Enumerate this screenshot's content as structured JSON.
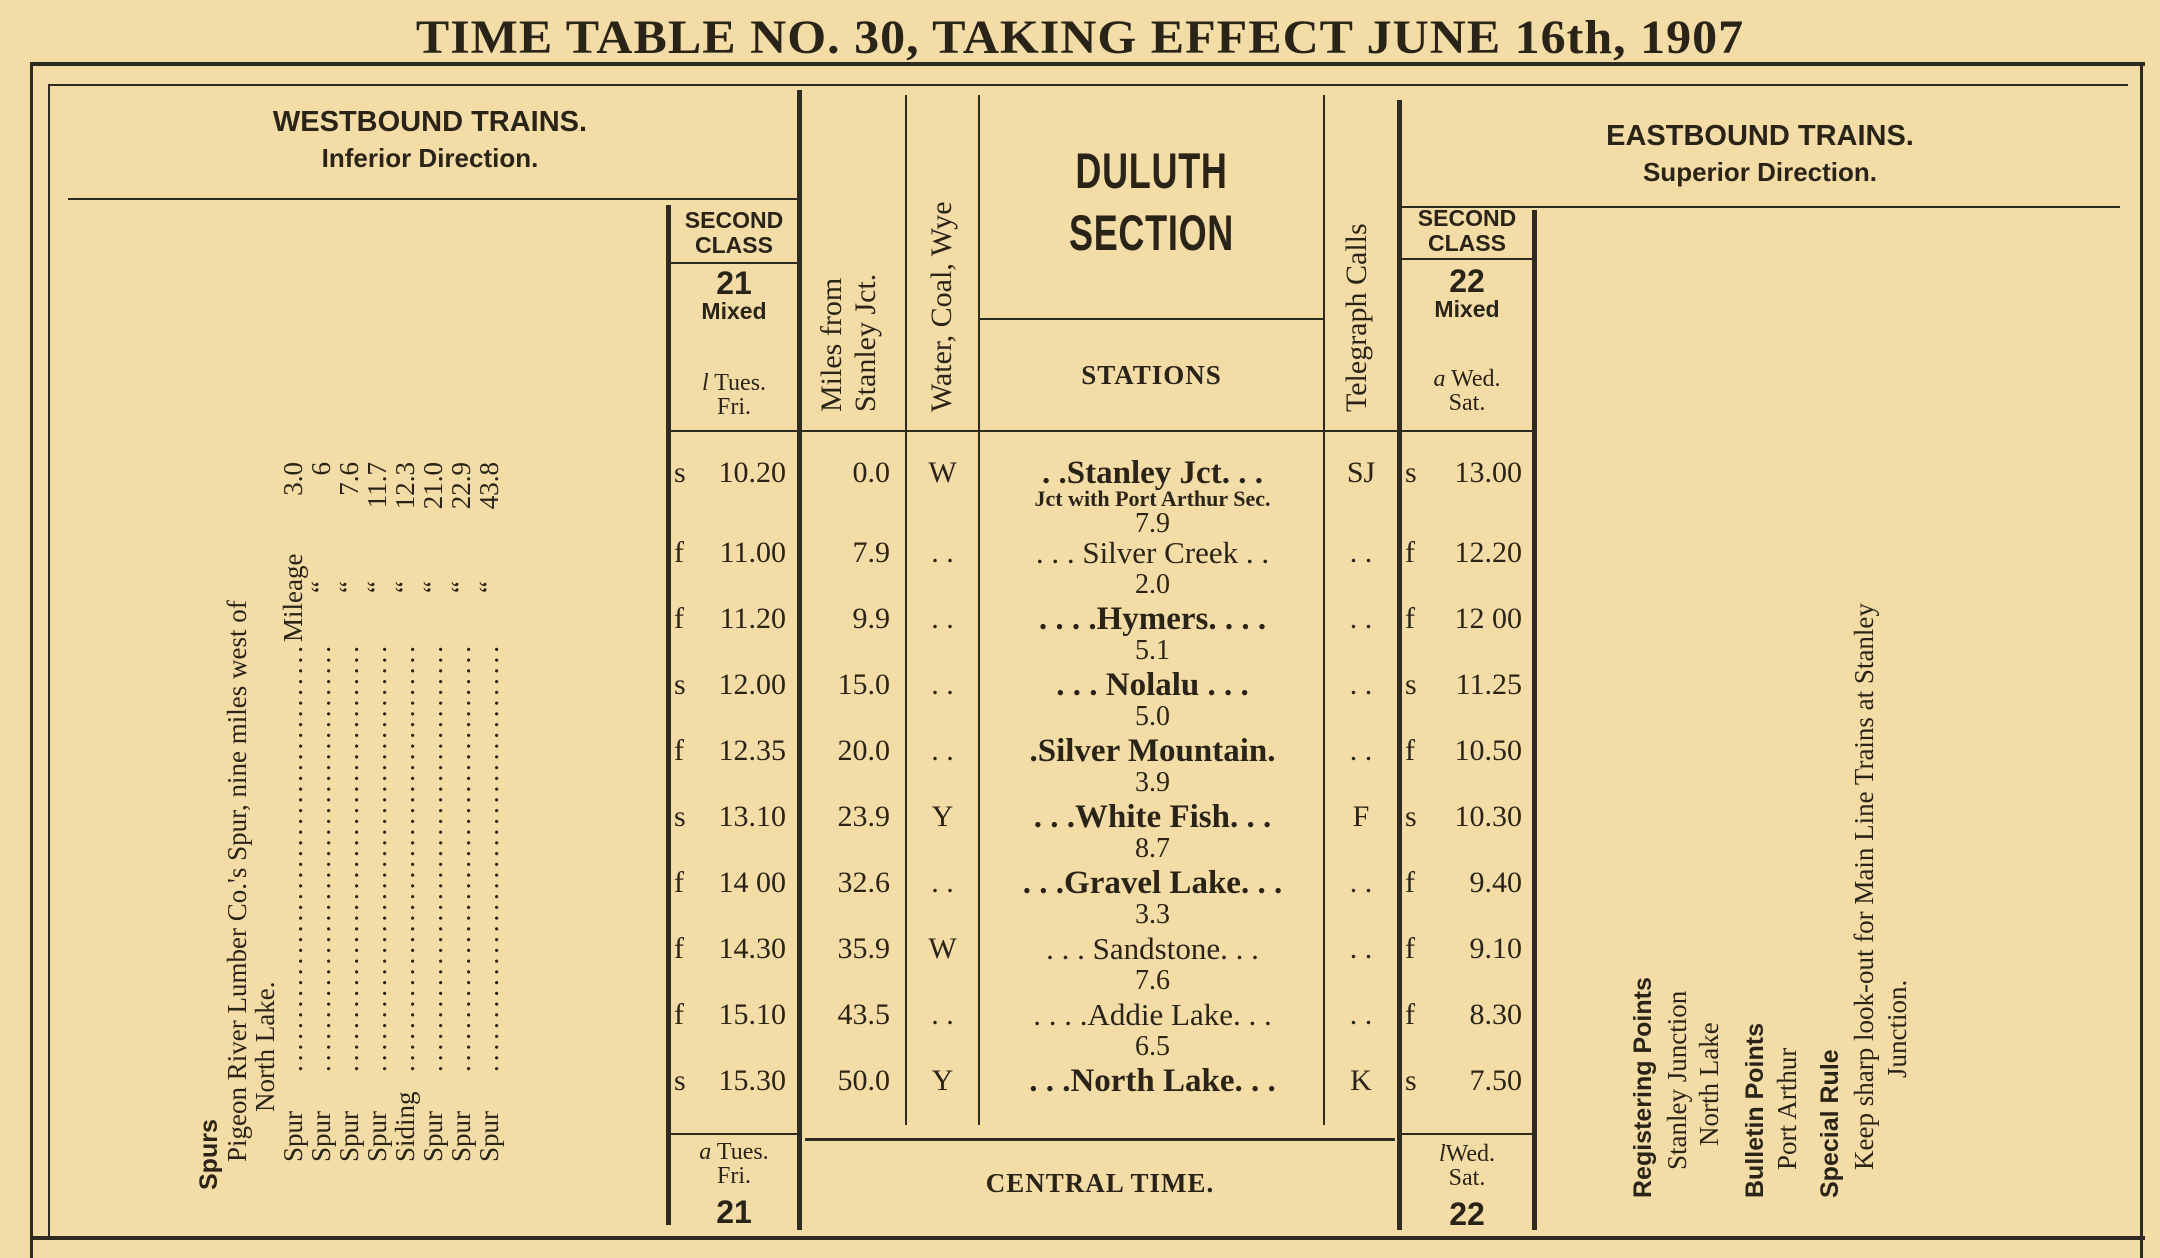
{
  "title": "TIME TABLE NO. 30, TAKING EFFECT JUNE 16th, 1907",
  "westbound": {
    "heading": "WESTBOUND TRAINS.",
    "direction": "Inferior Direction."
  },
  "eastbound": {
    "heading": "EASTBOUND TRAINS.",
    "direction": "Superior Direction."
  },
  "train21": {
    "class": [
      "SECOND",
      "CLASS"
    ],
    "number": "21",
    "type": "Mixed",
    "top_days_mark": "l",
    "top_days": [
      "Tues.",
      "Fri."
    ],
    "bottom_days_mark": "a",
    "bottom_days": [
      "Tues.",
      "Fri."
    ]
  },
  "train22": {
    "class": [
      "SECOND",
      "CLASS"
    ],
    "number": "22",
    "type": "Mixed",
    "top_days_mark": "a",
    "top_days": [
      "Wed.",
      "Sat."
    ],
    "bottom_days_mark": "l",
    "bottom_days": [
      "Wed.",
      "Sat."
    ]
  },
  "columns": {
    "miles": [
      "Miles from",
      "Stanley Jct."
    ],
    "water": "Water, Coal, Wye",
    "section": [
      "DULUTH",
      "SECTION"
    ],
    "stations": "STATIONS",
    "telegraph": "Telegraph Calls"
  },
  "rows": [
    {
      "w_flag": "s",
      "w_time": "10.20",
      "miles": "0.0",
      "wcw": "W",
      "station": ". .Stanley Jct. . .",
      "bold": true,
      "note": "Jct with Port Arthur Sec.",
      "call": "SJ",
      "e_flag": "s",
      "e_time": "13.00",
      "dist_next": "7.9"
    },
    {
      "w_flag": "f",
      "w_time": "11.00",
      "miles": "7.9",
      "wcw": ". .",
      "station": ". . . Silver Creek . .",
      "bold": false,
      "call": ". .",
      "e_flag": "f",
      "e_time": "12.20",
      "dist_next": "2.0"
    },
    {
      "w_flag": "f",
      "w_time": "11.20",
      "miles": "9.9",
      "wcw": ". .",
      "station": ". . . .Hymers. . . .",
      "bold": true,
      "call": ". .",
      "e_flag": "f",
      "e_time": "12 00",
      "dist_next": "5.1"
    },
    {
      "w_flag": "s",
      "w_time": "12.00",
      "miles": "15.0",
      "wcw": ". .",
      "station": ". . . Nolalu . . .",
      "bold": true,
      "call": ". .",
      "e_flag": "s",
      "e_time": "11.25",
      "dist_next": "5.0"
    },
    {
      "w_flag": "f",
      "w_time": "12.35",
      "miles": "20.0",
      "wcw": ". .",
      "station": ".Silver Mountain.",
      "bold": true,
      "call": ". .",
      "e_flag": "f",
      "e_time": "10.50",
      "dist_next": "3.9"
    },
    {
      "w_flag": "s",
      "w_time": "13.10",
      "miles": "23.9",
      "wcw": "Y",
      "station": ". . .White Fish. . .",
      "bold": true,
      "call": "F",
      "e_flag": "s",
      "e_time": "10.30",
      "dist_next": "8.7"
    },
    {
      "w_flag": "f",
      "w_time": "14 00",
      "miles": "32.6",
      "wcw": ". .",
      "station": ". . .Gravel Lake. . .",
      "bold": true,
      "call": ". .",
      "e_flag": "f",
      "e_time": "9.40",
      "dist_next": "3.3"
    },
    {
      "w_flag": "f",
      "w_time": "14.30",
      "miles": "35.9",
      "wcw": "W",
      "station": ". . . Sandstone. . .",
      "bold": false,
      "call": ". .",
      "e_flag": "f",
      "e_time": "9.10",
      "dist_next": "7.6"
    },
    {
      "w_flag": "f",
      "w_time": "15.10",
      "miles": "43.5",
      "wcw": ". .",
      "station": ". . . .Addie Lake. . .",
      "bold": false,
      "call": ". .",
      "e_flag": "f",
      "e_time": "8.30",
      "dist_next": "6.5"
    },
    {
      "w_flag": "s",
      "w_time": "15.30",
      "miles": "50.0",
      "wcw": "Y",
      "station": ". . .North Lake. . .",
      "bold": true,
      "call": "K",
      "e_flag": "s",
      "e_time": "7.50"
    }
  ],
  "central_time": "CENTRAL TIME.",
  "spurs": {
    "heading": "Spurs",
    "intro": [
      "Pigeon River Lumber Co.'s Spur, nine miles west of",
      "North Lake."
    ],
    "mileage_label": "Mileage",
    "ditto": "“",
    "items": [
      {
        "type": "Spur",
        "mileage": "3.0"
      },
      {
        "type": "Spur",
        "mileage": "6"
      },
      {
        "type": "Spur",
        "mileage": "7.6"
      },
      {
        "type": "Spur",
        "mileage": "11.7"
      },
      {
        "type": "Siding",
        "mileage": "12.3"
      },
      {
        "type": "Spur",
        "mileage": "21.0"
      },
      {
        "type": "Spur",
        "mileage": "22.9"
      },
      {
        "type": "Spur",
        "mileage": "43.8"
      }
    ]
  },
  "notes": {
    "registering_heading": "Registering Points",
    "registering": [
      "Stanley Junction",
      "North Lake"
    ],
    "bulletin_heading": "Bulletin Points",
    "bulletin": [
      "Port Arthur"
    ],
    "special_heading": "Special Rule",
    "special": [
      "Keep sharp look-out for Main Line Trains at Stanley",
      "Junction."
    ]
  },
  "colors": {
    "paper": "#f3dca6",
    "ink": "#2a2418"
  }
}
